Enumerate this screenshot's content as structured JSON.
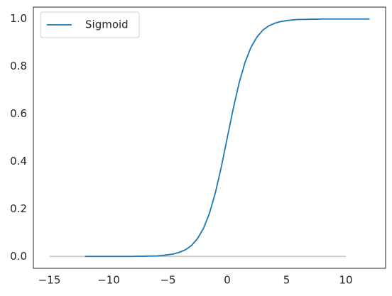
{
  "chart_data": {
    "type": "line",
    "series": [
      {
        "name": "Sigmoid",
        "color": "#1f77b4",
        "x": [
          -12,
          -11.5,
          -11,
          -10.5,
          -10,
          -9.5,
          -9,
          -8.5,
          -8,
          -7.5,
          -7,
          -6.5,
          -6,
          -5.5,
          -5,
          -4.5,
          -4,
          -3.5,
          -3,
          -2.5,
          -2,
          -1.5,
          -1,
          -0.5,
          0,
          0.5,
          1,
          1.5,
          2,
          2.5,
          3,
          3.5,
          4,
          4.5,
          5,
          5.5,
          6,
          6.5,
          7,
          7.5,
          8,
          8.5,
          9,
          9.5,
          10,
          10.5,
          11,
          11.5,
          12
        ],
        "values": [
          0,
          0,
          0,
          0,
          0,
          0,
          0,
          0,
          0,
          0.001,
          0.001,
          0.002,
          0.002,
          0.004,
          0.007,
          0.011,
          0.018,
          0.029,
          0.047,
          0.076,
          0.119,
          0.182,
          0.269,
          0.378,
          0.5,
          0.622,
          0.731,
          0.818,
          0.881,
          0.924,
          0.953,
          0.971,
          0.982,
          0.989,
          0.993,
          0.996,
          0.998,
          0.998,
          0.999,
          0.999,
          1,
          1,
          1,
          1,
          1,
          1,
          1,
          1,
          1
        ]
      },
      {
        "color": "#c8c8c8",
        "x": [
          -15,
          10
        ],
        "values": [
          0,
          0
        ]
      }
    ],
    "xlim": [
      -16.35,
      13.35
    ],
    "xticks": [
      {
        "value": -15,
        "label": "−15"
      },
      {
        "value": -10,
        "label": "−10"
      },
      {
        "value": -5,
        "label": "−5"
      },
      0,
      5,
      10
    ],
    "ylim": [
      -0.05,
      1.05
    ],
    "yticks": [
      {
        "value": 0,
        "label": "0.0"
      },
      0.2,
      0.4,
      0.6,
      0.8,
      {
        "value": 1,
        "label": "1.0"
      }
    ],
    "legend": "upper left"
  }
}
